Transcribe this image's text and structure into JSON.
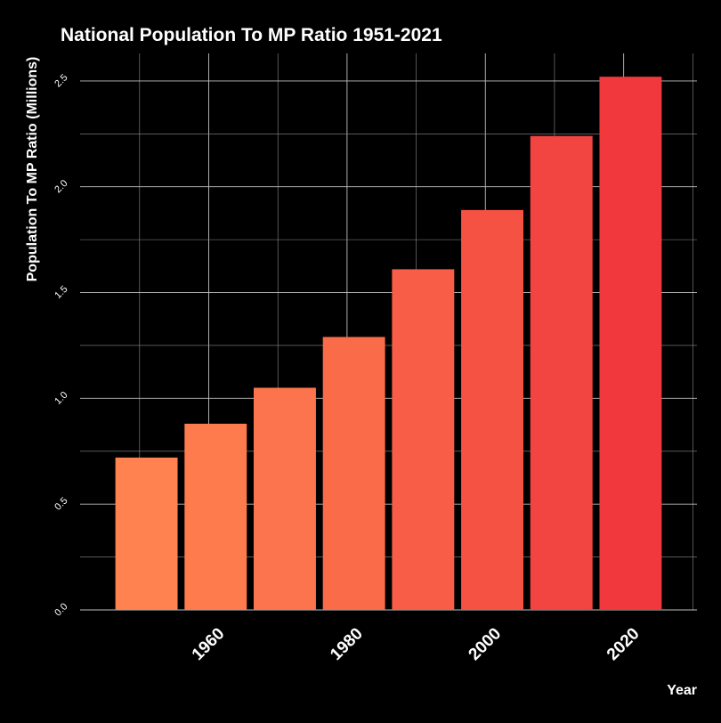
{
  "chart_data": {
    "type": "bar",
    "title": "National Population To MP Ratio 1951-2021",
    "xlabel": "Year",
    "ylabel": "Population To MP Ratio (Millions)",
    "x": [
      1951,
      1961,
      1971,
      1981,
      1991,
      2001,
      2011,
      2021
    ],
    "values": [
      0.72,
      0.88,
      1.05,
      1.29,
      1.61,
      1.89,
      2.24,
      2.52
    ],
    "xticks": [
      "1960",
      "1980",
      "2000",
      "2020"
    ],
    "xtick_values": [
      1960,
      1980,
      2000,
      2020
    ],
    "yticks": [
      "0.0",
      "0.5",
      "1.0",
      "1.5",
      "2.0",
      "2.5"
    ],
    "ytick_values": [
      0,
      0.5,
      1.0,
      1.5,
      2.0,
      2.5
    ],
    "xlim": [
      1941.4,
      2030.6
    ],
    "ylim": [
      0,
      2.63
    ],
    "grid": true,
    "background": "#000000",
    "color_low": "#FF8250",
    "color_high": "#F0383D"
  }
}
